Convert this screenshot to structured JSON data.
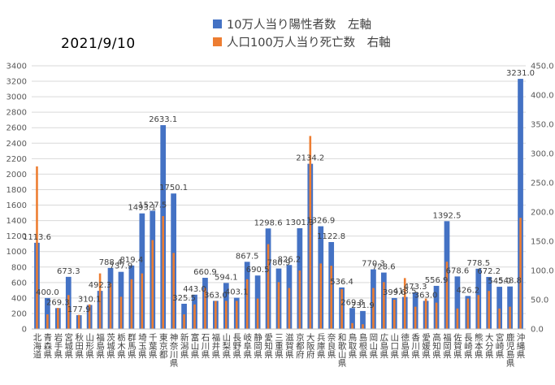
{
  "date_label": "2021/9/10",
  "chart_data": {
    "type": "bar",
    "legend_position": "top-center",
    "grid": true,
    "left_axis": {
      "min": 0,
      "max": 3400,
      "step": 200
    },
    "right_axis": {
      "min": 0,
      "max": 450,
      "step": 50
    },
    "series": [
      {
        "name": "10万人当り陽性者数　左軸",
        "axis": "left",
        "color": "#4472C4",
        "values": [
          1113.6,
          400.0,
          269.3,
          673.3,
          177.9,
          310.1,
          492.3,
          788.4,
          737.9,
          819.4,
          1493.1,
          1527.5,
          2633.1,
          1750.1,
          325.5,
          443.0,
          660.9,
          363.0,
          594.1,
          403.1,
          867.5,
          690.5,
          1298.6,
          780.9,
          826.2,
          1301.3,
          2134.2,
          1326.9,
          1122.8,
          536.4,
          269.8,
          231.9,
          770.3,
          728.6,
          399.6,
          413.5,
          473.3,
          363.0,
          556.9,
          1392.5,
          678.6,
          426.2,
          778.5,
          672.2,
          545.0,
          548.8,
          3231.0
        ],
        "data_labels": [
          "1113.6",
          "400.0",
          "269.3",
          "673.3",
          "177.9",
          "310.1",
          "492.3",
          "788.4",
          "737.9",
          "819.4",
          "1493.1",
          "1527.5",
          "2633.1",
          "1750.1",
          "325.5",
          "443.0",
          "660.9",
          "363.0",
          "594.1",
          "403.1",
          "867.5",
          "690.5",
          "1298.6",
          "780.9",
          "826.2",
          "1301.3",
          "2134.2",
          "1326.9",
          "1122.8",
          "536.4",
          "269.8",
          "231.9",
          "770.3",
          "728.6",
          "399.6",
          "413.5",
          "473.3",
          "363.0",
          "556.9",
          "1392.5",
          "678.6",
          "426.2",
          "778.5",
          "672.2",
          "545.0",
          "548.8",
          "3231.0"
        ]
      },
      {
        "name": "人口100万人当り死亡数　右軸",
        "axis": "right",
        "color": "#ED7D31",
        "values": [
          278,
          25,
          36,
          58,
          24,
          42,
          95,
          78,
          55,
          85,
          95,
          152,
          193,
          130,
          25,
          42,
          70,
          48,
          48,
          48,
          85,
          52,
          145,
          80,
          70,
          100,
          330,
          112,
          108,
          68,
          10,
          8,
          70,
          80,
          50,
          87,
          38,
          52,
          45,
          115,
          35,
          52,
          58,
          65,
          35,
          38,
          190
        ]
      }
    ],
    "categories": [
      "北海道",
      "青森県",
      "岩手県",
      "宮城県",
      "秋田県",
      "山形県",
      "福島県",
      "茨城県",
      "栃木県",
      "群馬県",
      "埼玉県",
      "千葉県",
      "東京都",
      "神奈川県",
      "新潟県",
      "富山県",
      "石川県",
      "福井県",
      "山梨県",
      "長野県",
      "岐阜県",
      "静岡県",
      "愛知県",
      "三重県",
      "滋賀県",
      "京都府",
      "大阪府",
      "兵庫県",
      "奈良県",
      "和歌山県",
      "鳥取県",
      "島根県",
      "岡山県",
      "広島県",
      "山口県",
      "徳島県",
      "香川県",
      "愛媛県",
      "高知県",
      "福岡県",
      "佐賀県",
      "長崎県",
      "熊本県",
      "大分県",
      "宮崎県",
      "鹿児島県",
      "沖縄県"
    ]
  }
}
